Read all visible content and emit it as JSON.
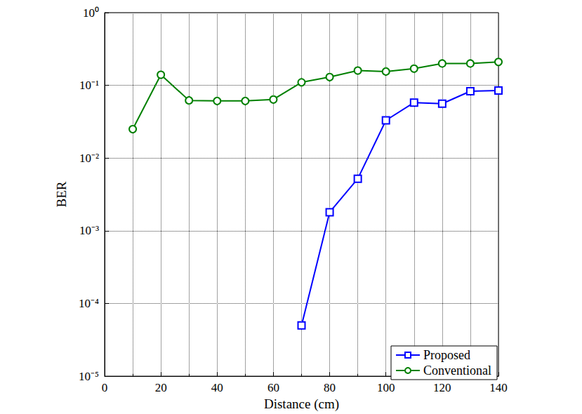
{
  "chart_data": {
    "type": "line",
    "x_label": "Distance (cm)",
    "y_label": "BER",
    "log": "y",
    "grid": true,
    "legend": "lower right",
    "xlim": [
      0,
      140
    ],
    "xticks": [
      0,
      20,
      40,
      60,
      80,
      100,
      120,
      140
    ],
    "ylim": [
      1e-05,
      1
    ],
    "yticks": [
      {
        "value": 1e-05,
        "label": "10⁻⁵"
      },
      {
        "value": 0.0001,
        "label": "10⁻⁴"
      },
      {
        "value": 0.001,
        "label": "10⁻³"
      },
      {
        "value": 0.01,
        "label": "10⁻²"
      },
      {
        "value": 0.1,
        "label": "10⁻¹"
      },
      {
        "value": 1,
        "label": "10⁰"
      }
    ],
    "series": [
      {
        "name": "Proposed",
        "color": "#0000ff",
        "marker": "square",
        "line_style": "solid",
        "x": [
          70,
          80,
          90,
          100,
          110,
          120,
          130,
          140
        ],
        "values": [
          5e-05,
          0.0018,
          0.0052,
          0.033,
          0.058,
          0.056,
          0.083,
          0.085
        ]
      },
      {
        "name": "Conventional",
        "color": "#008000",
        "marker": "circle",
        "line_style": "solid",
        "x": [
          10,
          20,
          30,
          40,
          50,
          60,
          70,
          80,
          90,
          100,
          110,
          120,
          130,
          140
        ],
        "values": [
          0.025,
          0.14,
          0.062,
          0.061,
          0.061,
          0.064,
          0.11,
          0.13,
          0.16,
          0.155,
          0.17,
          0.2,
          0.2,
          0.21
        ]
      }
    ]
  }
}
